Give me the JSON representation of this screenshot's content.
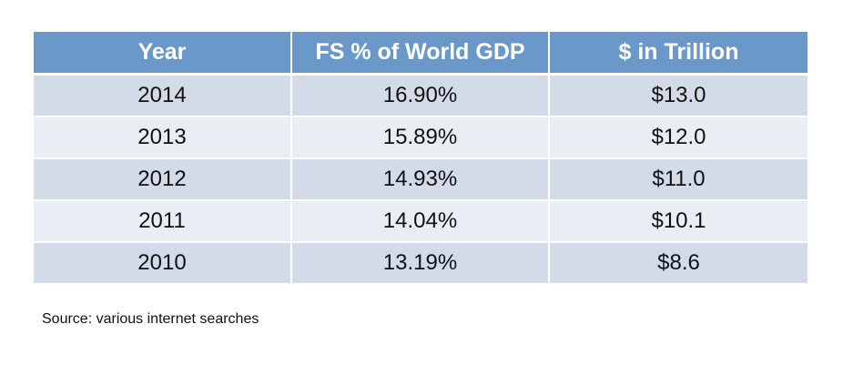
{
  "chart_data": {
    "type": "table",
    "columns": [
      "Year",
      "FS % of World GDP",
      "$ in Trillion"
    ],
    "rows": [
      [
        "2014",
        "16.90%",
        "$13.0"
      ],
      [
        "2013",
        "15.89%",
        "$12.0"
      ],
      [
        "2012",
        "14.93%",
        "$11.0"
      ],
      [
        "2011",
        "14.04%",
        "$10.1"
      ],
      [
        "2010",
        "13.19%",
        "$8.6"
      ]
    ]
  },
  "source_note": "Source: various internet searches",
  "colors": {
    "header_bg": "#6a98c8",
    "row_dark": "#d3dbe9",
    "row_light": "#e9eef5"
  }
}
